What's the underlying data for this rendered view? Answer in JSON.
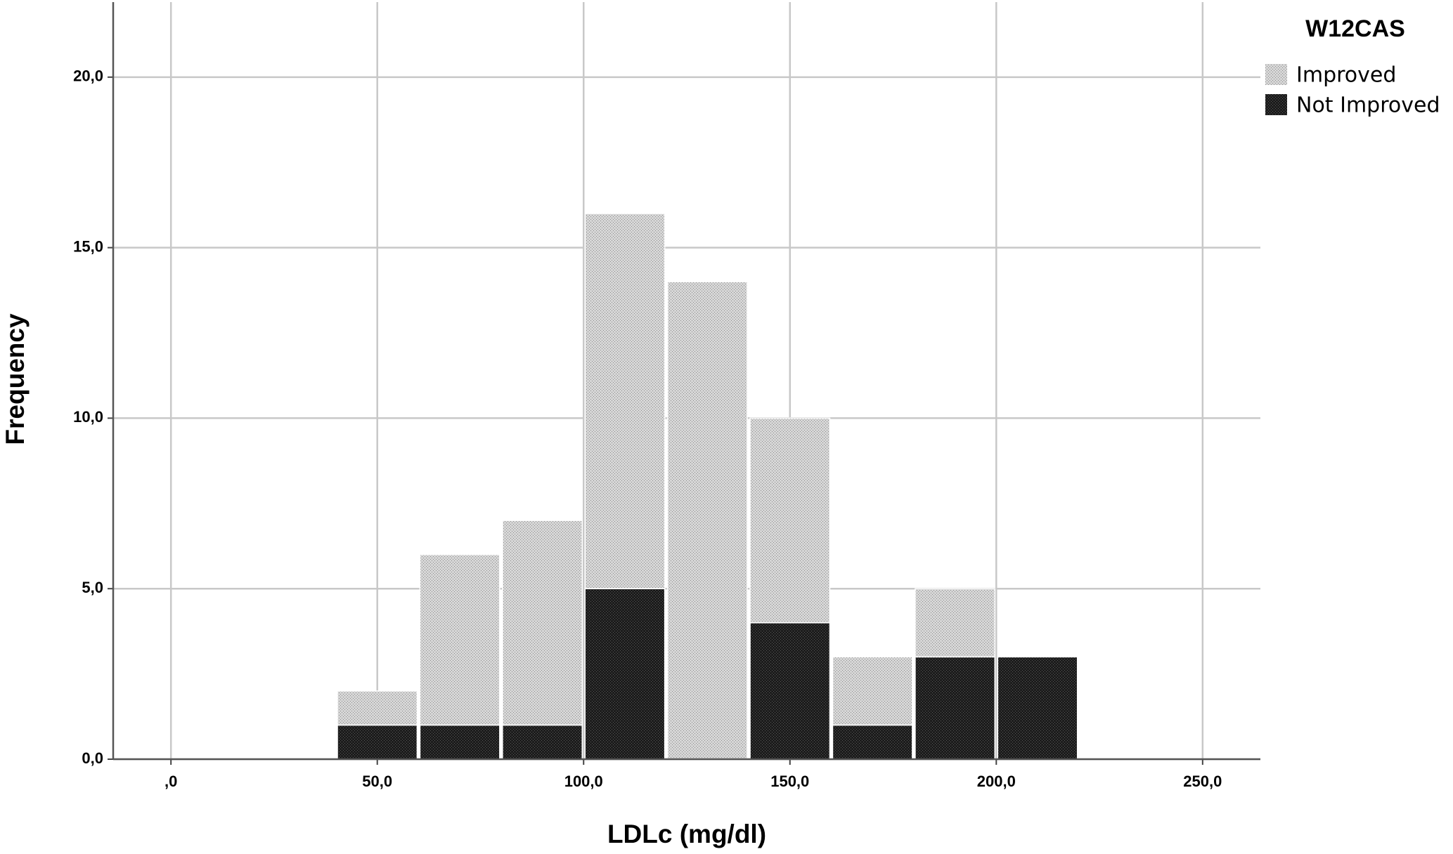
{
  "chart_data": {
    "type": "histogram",
    "x_label": "LDLc (mg/dl)",
    "y_label": "Frequency",
    "legend_title": "W12CAS",
    "legend": "upper right",
    "grid": true,
    "stacked": true,
    "bins": [
      40,
      60,
      80,
      100,
      120,
      140,
      160,
      180,
      200,
      220
    ],
    "series": [
      {
        "name": "Improved",
        "color": "#d6d6d6",
        "values": [
          1,
          5,
          6,
          11,
          14,
          6,
          2,
          2,
          0
        ]
      },
      {
        "name": "Not Improved",
        "color": "#1c1c1c",
        "values": [
          1,
          1,
          1,
          5,
          0,
          4,
          1,
          3,
          3
        ]
      }
    ],
    "xlim": [
      -14,
      264
    ],
    "xticks": [
      {
        "value": 0,
        "label": ",0"
      },
      {
        "value": 50,
        "label": "50,0"
      },
      {
        "value": 100,
        "label": "100,0"
      },
      {
        "value": 150,
        "label": "150,0"
      },
      {
        "value": 200,
        "label": "200,0"
      },
      {
        "value": 250,
        "label": "250,0"
      }
    ],
    "ylim": [
      0,
      22.2
    ],
    "yticks": [
      {
        "value": 0,
        "label": "0,0"
      },
      {
        "value": 5,
        "label": "5,0"
      },
      {
        "value": 10,
        "label": "10,0"
      },
      {
        "value": 15,
        "label": "15,0"
      },
      {
        "value": 20,
        "label": "20,0"
      }
    ]
  }
}
